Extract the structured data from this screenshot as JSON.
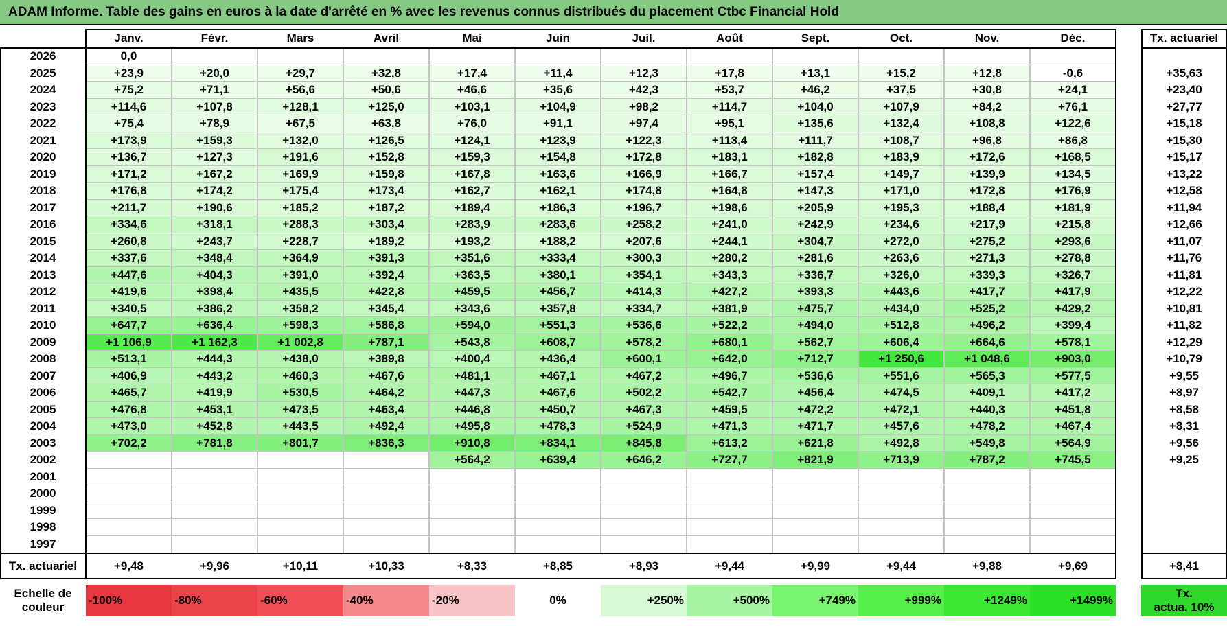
{
  "title": "ADAM Informe. Table des gains en euros à la date d'arrêté en % avec les revenus connus distribués du placement Ctbc Financial Hold",
  "chart_data": {
    "type": "heatmap",
    "months": [
      "Janv.",
      "Févr.",
      "Mars",
      "Avril",
      "Mai",
      "Juin",
      "Juil.",
      "Août",
      "Sept.",
      "Oct.",
      "Nov.",
      "Déc."
    ],
    "rate_header": "Tx. actuariel",
    "rows": [
      {
        "year": "2026",
        "values": [
          "0,0",
          "",
          "",
          "",
          "",
          "",
          "",
          "",
          "",
          "",
          "",
          ""
        ],
        "rate": ""
      },
      {
        "year": "2025",
        "values": [
          "+23,9",
          "+20,0",
          "+29,7",
          "+32,8",
          "+17,4",
          "+11,4",
          "+12,3",
          "+17,8",
          "+13,1",
          "+15,2",
          "+12,8",
          "-0,6"
        ],
        "rate": "+35,63"
      },
      {
        "year": "2024",
        "values": [
          "+75,2",
          "+71,1",
          "+56,6",
          "+50,6",
          "+46,6",
          "+35,6",
          "+42,3",
          "+53,7",
          "+46,2",
          "+37,5",
          "+30,8",
          "+24,1"
        ],
        "rate": "+23,40"
      },
      {
        "year": "2023",
        "values": [
          "+114,6",
          "+107,8",
          "+128,1",
          "+125,0",
          "+103,1",
          "+104,9",
          "+98,2",
          "+114,7",
          "+104,0",
          "+107,9",
          "+84,2",
          "+76,1"
        ],
        "rate": "+27,77"
      },
      {
        "year": "2022",
        "values": [
          "+75,4",
          "+78,9",
          "+67,5",
          "+63,8",
          "+76,0",
          "+91,1",
          "+97,4",
          "+95,1",
          "+135,6",
          "+132,4",
          "+108,8",
          "+122,6"
        ],
        "rate": "+15,18"
      },
      {
        "year": "2021",
        "values": [
          "+173,9",
          "+159,3",
          "+132,0",
          "+126,5",
          "+124,1",
          "+123,9",
          "+122,3",
          "+113,4",
          "+111,7",
          "+108,7",
          "+96,8",
          "+86,8"
        ],
        "rate": "+15,30"
      },
      {
        "year": "2020",
        "values": [
          "+136,7",
          "+127,3",
          "+191,6",
          "+152,8",
          "+159,3",
          "+154,8",
          "+172,8",
          "+183,1",
          "+182,8",
          "+183,9",
          "+172,6",
          "+168,5"
        ],
        "rate": "+15,17"
      },
      {
        "year": "2019",
        "values": [
          "+171,2",
          "+167,2",
          "+169,9",
          "+159,8",
          "+167,8",
          "+163,6",
          "+166,9",
          "+166,7",
          "+157,4",
          "+149,7",
          "+139,9",
          "+134,5"
        ],
        "rate": "+13,22"
      },
      {
        "year": "2018",
        "values": [
          "+176,8",
          "+174,2",
          "+175,4",
          "+173,4",
          "+162,7",
          "+162,1",
          "+174,8",
          "+164,8",
          "+147,3",
          "+171,0",
          "+172,8",
          "+176,9"
        ],
        "rate": "+12,58"
      },
      {
        "year": "2017",
        "values": [
          "+211,7",
          "+190,6",
          "+185,2",
          "+187,2",
          "+189,4",
          "+186,3",
          "+196,7",
          "+198,6",
          "+205,9",
          "+195,3",
          "+188,4",
          "+181,9"
        ],
        "rate": "+11,94"
      },
      {
        "year": "2016",
        "values": [
          "+334,6",
          "+318,1",
          "+288,3",
          "+303,4",
          "+283,9",
          "+283,6",
          "+258,2",
          "+241,0",
          "+242,9",
          "+234,6",
          "+217,9",
          "+215,8"
        ],
        "rate": "+12,66"
      },
      {
        "year": "2015",
        "values": [
          "+260,8",
          "+243,7",
          "+228,7",
          "+189,2",
          "+193,2",
          "+188,2",
          "+207,6",
          "+244,1",
          "+304,7",
          "+272,0",
          "+275,2",
          "+293,6"
        ],
        "rate": "+11,07"
      },
      {
        "year": "2014",
        "values": [
          "+337,6",
          "+348,4",
          "+364,9",
          "+391,3",
          "+351,6",
          "+333,4",
          "+300,3",
          "+280,2",
          "+281,6",
          "+263,6",
          "+271,3",
          "+278,8"
        ],
        "rate": "+11,76"
      },
      {
        "year": "2013",
        "values": [
          "+447,6",
          "+404,3",
          "+391,0",
          "+392,4",
          "+363,5",
          "+380,1",
          "+354,1",
          "+343,3",
          "+336,7",
          "+326,0",
          "+339,3",
          "+326,7"
        ],
        "rate": "+11,81"
      },
      {
        "year": "2012",
        "values": [
          "+419,6",
          "+398,4",
          "+435,5",
          "+422,8",
          "+459,5",
          "+456,7",
          "+414,3",
          "+427,2",
          "+393,3",
          "+443,6",
          "+417,7",
          "+417,9"
        ],
        "rate": "+12,22"
      },
      {
        "year": "2011",
        "values": [
          "+340,5",
          "+386,2",
          "+358,2",
          "+345,4",
          "+343,6",
          "+357,8",
          "+334,7",
          "+381,9",
          "+475,7",
          "+434,0",
          "+525,2",
          "+429,2"
        ],
        "rate": "+10,81"
      },
      {
        "year": "2010",
        "values": [
          "+647,7",
          "+636,4",
          "+598,3",
          "+586,8",
          "+594,0",
          "+551,3",
          "+536,6",
          "+522,2",
          "+494,0",
          "+512,8",
          "+496,2",
          "+399,4"
        ],
        "rate": "+11,82"
      },
      {
        "year": "2009",
        "values": [
          "+1 106,9",
          "+1 162,3",
          "+1 002,8",
          "+787,1",
          "+543,8",
          "+608,7",
          "+578,2",
          "+680,1",
          "+562,7",
          "+606,4",
          "+664,6",
          "+578,1"
        ],
        "rate": "+12,29"
      },
      {
        "year": "2008",
        "values": [
          "+513,1",
          "+444,3",
          "+438,0",
          "+389,8",
          "+400,4",
          "+436,4",
          "+600,1",
          "+642,0",
          "+712,7",
          "+1 250,6",
          "+1 048,6",
          "+903,0"
        ],
        "rate": "+10,79"
      },
      {
        "year": "2007",
        "values": [
          "+406,9",
          "+443,2",
          "+460,3",
          "+467,6",
          "+481,1",
          "+467,1",
          "+467,2",
          "+496,7",
          "+536,6",
          "+551,6",
          "+565,3",
          "+577,5"
        ],
        "rate": "+9,55"
      },
      {
        "year": "2006",
        "values": [
          "+465,7",
          "+419,9",
          "+530,5",
          "+464,2",
          "+447,3",
          "+467,6",
          "+502,2",
          "+542,7",
          "+456,4",
          "+474,5",
          "+409,1",
          "+417,2"
        ],
        "rate": "+8,97"
      },
      {
        "year": "2005",
        "values": [
          "+476,8",
          "+453,1",
          "+473,5",
          "+463,4",
          "+446,8",
          "+450,7",
          "+467,3",
          "+459,5",
          "+472,2",
          "+472,1",
          "+440,3",
          "+451,8"
        ],
        "rate": "+8,58"
      },
      {
        "year": "2004",
        "values": [
          "+473,0",
          "+452,8",
          "+443,5",
          "+492,4",
          "+495,8",
          "+478,3",
          "+524,9",
          "+471,3",
          "+471,7",
          "+457,6",
          "+478,2",
          "+467,4"
        ],
        "rate": "+8,31"
      },
      {
        "year": "2003",
        "values": [
          "+702,2",
          "+781,8",
          "+801,7",
          "+836,3",
          "+910,8",
          "+834,1",
          "+845,8",
          "+613,2",
          "+621,8",
          "+492,8",
          "+549,8",
          "+564,9"
        ],
        "rate": "+9,56"
      },
      {
        "year": "2002",
        "values": [
          "",
          "",
          "",
          "",
          "+564,2",
          "+639,4",
          "+646,2",
          "+727,7",
          "+821,9",
          "+713,9",
          "+787,2",
          "+745,5"
        ],
        "rate": "+9,25"
      },
      {
        "year": "2001",
        "values": [
          "",
          "",
          "",
          "",
          "",
          "",
          "",
          "",
          "",
          "",
          "",
          ""
        ],
        "rate": ""
      },
      {
        "year": "2000",
        "values": [
          "",
          "",
          "",
          "",
          "",
          "",
          "",
          "",
          "",
          "",
          "",
          ""
        ],
        "rate": ""
      },
      {
        "year": "1999",
        "values": [
          "",
          "",
          "",
          "",
          "",
          "",
          "",
          "",
          "",
          "",
          "",
          ""
        ],
        "rate": ""
      },
      {
        "year": "1998",
        "values": [
          "",
          "",
          "",
          "",
          "",
          "",
          "",
          "",
          "",
          "",
          "",
          ""
        ],
        "rate": ""
      },
      {
        "year": "1997",
        "values": [
          "",
          "",
          "",
          "",
          "",
          "",
          "",
          "",
          "",
          "",
          "",
          ""
        ],
        "rate": ""
      }
    ],
    "footer": {
      "label": "Tx. actuariel",
      "values": [
        "+9,48",
        "+9,96",
        "+10,11",
        "+10,33",
        "+8,33",
        "+8,85",
        "+8,93",
        "+9,44",
        "+9,99",
        "+9,44",
        "+9,88",
        "+9,69"
      ],
      "rate": "+8,41"
    },
    "scale": {
      "label_line1": "Echelle de",
      "label_line2": "couleur",
      "items": [
        {
          "label": "-100%",
          "color": "#e8373f",
          "align": "left"
        },
        {
          "label": "-80%",
          "color": "#ec434b",
          "align": "left"
        },
        {
          "label": "-60%",
          "color": "#f04f57",
          "align": "left"
        },
        {
          "label": "-40%",
          "color": "#f48a8e",
          "align": "left"
        },
        {
          "label": "-20%",
          "color": "#f9c4c5",
          "align": "left"
        },
        {
          "label": "0%",
          "color": "#ffffff",
          "align": "center"
        },
        {
          "label": "+250%",
          "color": "#d6f8d4",
          "align": "right"
        },
        {
          "label": "+500%",
          "color": "#a7f5a2",
          "align": "right"
        },
        {
          "label": "+749%",
          "color": "#78f46f",
          "align": "right"
        },
        {
          "label": "+999%",
          "color": "#55ee4a",
          "align": "right"
        },
        {
          "label": "+1249%",
          "color": "#3ce734",
          "align": "right"
        },
        {
          "label": "+1499%",
          "color": "#2ce028",
          "align": "right"
        }
      ],
      "rate_line1": "Tx.",
      "rate_line2": "actua. 10%",
      "rate_color": "#2fd82a"
    }
  }
}
